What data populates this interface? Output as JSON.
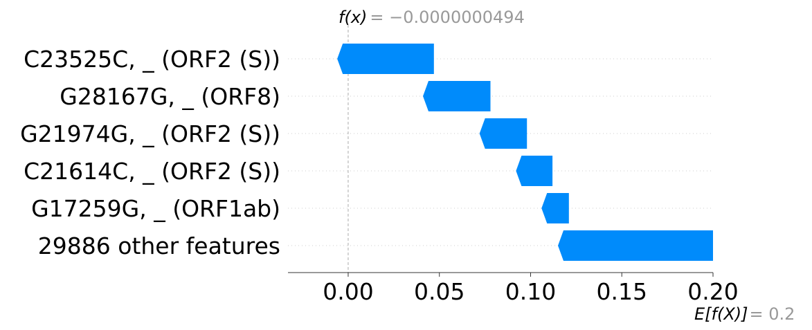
{
  "chart_data": {
    "type": "waterfall",
    "fx_label": "f(x)",
    "fx_value_text": "= −0.0000000494",
    "efx_label": "E[f(X)]",
    "efx_value_text": "= 0.2",
    "base_value": 0.2,
    "final_value": -4.94e-08,
    "bar_color": "#008bfb",
    "features": [
      {
        "label": "C23525C, _ (ORF2 (S))",
        "start": 0.047,
        "end": -0.006
      },
      {
        "label": "G28167G, _ (ORF8)",
        "start": 0.078,
        "end": 0.041
      },
      {
        "label": "G21974G, _ (ORF2 (S))",
        "start": 0.098,
        "end": 0.072
      },
      {
        "label": "C21614C, _ (ORF2 (S))",
        "start": 0.112,
        "end": 0.092
      },
      {
        "label": "G17259G, _ (ORF1ab)",
        "start": 0.121,
        "end": 0.106
      },
      {
        "label": "29886 other features",
        "start": 0.2,
        "end": 0.115
      }
    ],
    "x_ticks": [
      {
        "value": 0.0,
        "label": "0.00"
      },
      {
        "value": 0.05,
        "label": "0.05"
      },
      {
        "value": 0.1,
        "label": "0.10"
      },
      {
        "value": 0.15,
        "label": "0.15"
      },
      {
        "value": 0.2,
        "label": "0.20"
      }
    ],
    "xlim": [
      -0.033,
      0.2
    ]
  }
}
